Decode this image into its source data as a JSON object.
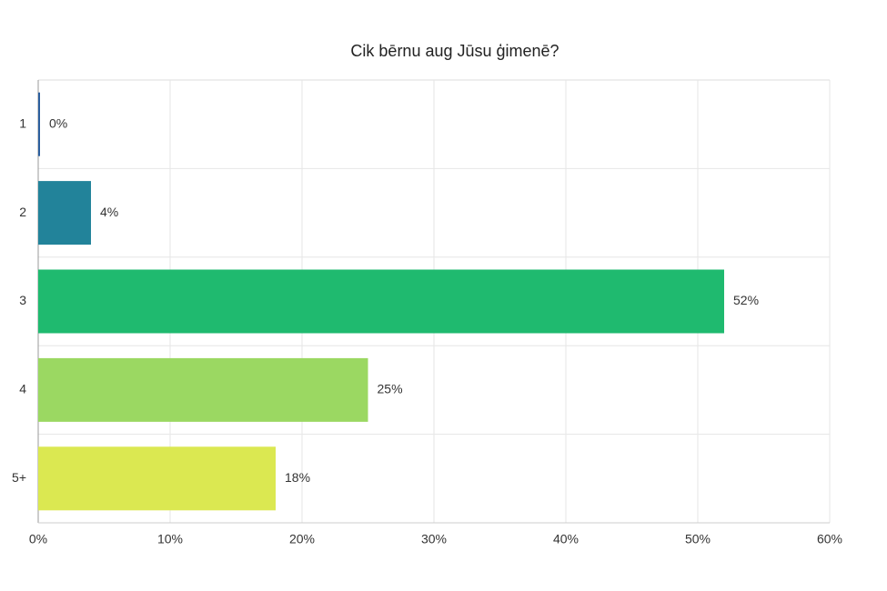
{
  "chart_data": {
    "type": "bar",
    "orientation": "horizontal",
    "title": "Cik bērnu aug Jūsu ģimenē?",
    "categories": [
      "1",
      "2",
      "3",
      "4",
      "5+"
    ],
    "values": [
      0,
      4,
      52,
      25,
      18
    ],
    "value_labels": [
      "0%",
      "4%",
      "52%",
      "25%",
      "18%"
    ],
    "colors": [
      "#2c5f9e",
      "#22839a",
      "#1fba6f",
      "#9bd862",
      "#dbe851"
    ],
    "xlim": [
      0,
      60
    ],
    "xticks": [
      {
        "value": 0,
        "label": "0%"
      },
      {
        "value": 10,
        "label": "10%"
      },
      {
        "value": 20,
        "label": "20%"
      },
      {
        "value": 30,
        "label": "30%"
      },
      {
        "value": 40,
        "label": "40%"
      },
      {
        "value": 50,
        "label": "50%"
      },
      {
        "value": 60,
        "label": "60%"
      }
    ],
    "grid": true
  }
}
